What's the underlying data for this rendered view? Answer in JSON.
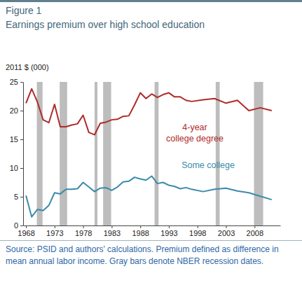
{
  "chart_data": {
    "type": "line",
    "figure_label": "Figure 1",
    "title": "Earnings premium over high school education",
    "ylabel": "2011 $ (000)",
    "source": "Source: PSID and authors' calculations. Premium defined as difference in mean annual labor income. Gray bars denote NBER recession dates.",
    "x": [
      1968,
      1969,
      1970,
      1971,
      1972,
      1973,
      1974,
      1975,
      1976,
      1977,
      1978,
      1979,
      1980,
      1981,
      1982,
      1983,
      1984,
      1985,
      1986,
      1987,
      1988,
      1989,
      1990,
      1991,
      1992,
      1993,
      1994,
      1995,
      1996,
      1997,
      1999,
      2001,
      2003,
      2005,
      2007,
      2009,
      2011
    ],
    "series": [
      {
        "name": "4-year college degree",
        "color": "#b02a2a",
        "values": [
          21.3,
          23.8,
          21.5,
          18.4,
          17.9,
          21.1,
          17.2,
          17.2,
          17.5,
          17.7,
          19.2,
          16.2,
          15.8,
          17.8,
          18.0,
          18.4,
          18.5,
          19.0,
          19.1,
          21.0,
          23.1,
          22.1,
          22.9,
          22.3,
          22.8,
          23.1,
          22.4,
          22.4,
          21.8,
          21.6,
          21.9,
          22.1,
          21.3,
          21.8,
          20.0,
          20.5,
          20.0
        ]
      },
      {
        "name": "Some college",
        "color": "#3b8bab",
        "values": [
          5.2,
          1.5,
          2.8,
          2.6,
          3.5,
          5.7,
          5.5,
          6.3,
          6.3,
          6.4,
          7.5,
          6.7,
          5.9,
          6.5,
          6.6,
          6.1,
          6.7,
          7.6,
          7.7,
          8.4,
          8.1,
          7.9,
          8.6,
          7.3,
          7.5,
          7.0,
          6.8,
          6.4,
          6.6,
          6.3,
          5.9,
          6.3,
          6.5,
          6.0,
          5.7,
          5.1,
          4.5
        ]
      }
    ],
    "recessions": [
      {
        "start": 1969.9,
        "end": 1970.9
      },
      {
        "start": 1973.9,
        "end": 1975.2
      },
      {
        "start": 1980.0,
        "end": 1980.5
      },
      {
        "start": 1981.5,
        "end": 1982.9
      },
      {
        "start": 1990.5,
        "end": 1991.2
      },
      {
        "start": 2001.2,
        "end": 2001.9
      },
      {
        "start": 2007.9,
        "end": 2009.5
      }
    ],
    "xlim": [
      1967.5,
      2012.5
    ],
    "xticks": [
      1968,
      1973,
      1978,
      1983,
      1988,
      1993,
      1998,
      2003,
      2008
    ],
    "ylim": [
      0,
      25
    ],
    "yticks": [
      0,
      5,
      10,
      15,
      20,
      25
    ],
    "grid": false
  }
}
